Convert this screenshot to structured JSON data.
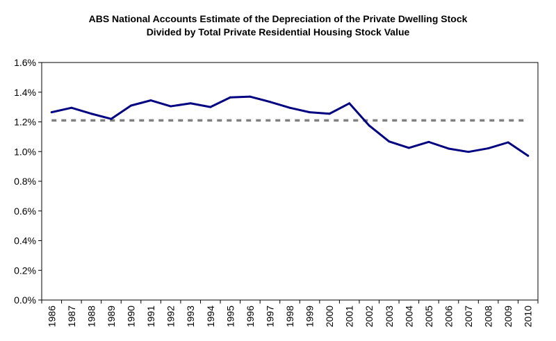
{
  "chart_data": {
    "type": "line",
    "title": "ABS National Accounts Estimate of the Depreciation of the Private Dwelling Stock",
    "subtitle": "Divided by Total Private Residential Housing Stock Value",
    "xlabel": "",
    "ylabel": "",
    "categories": [
      "1986",
      "1987",
      "1988",
      "1989",
      "1990",
      "1991",
      "1992",
      "1993",
      "1994",
      "1995",
      "1996",
      "1997",
      "1998",
      "1999",
      "2000",
      "2001",
      "2002",
      "2003",
      "2004",
      "2005",
      "2006",
      "2007",
      "2008",
      "2009",
      "2010"
    ],
    "series": [
      {
        "values": [
          1.265,
          1.295,
          1.255,
          1.22,
          1.31,
          1.345,
          1.305,
          1.325,
          1.3,
          1.365,
          1.37,
          1.335,
          1.295,
          1.265,
          1.255,
          1.325,
          1.175,
          1.068,
          1.025,
          1.065,
          1.02,
          0.998,
          1.022,
          1.062,
          0.972
        ],
        "color": "#000080",
        "style": "solid"
      }
    ],
    "reference_line": {
      "value": 1.21,
      "color": "#808080",
      "style": "dashed"
    },
    "ylim": [
      0,
      1.6
    ],
    "yticks": [
      "0.0%",
      "0.2%",
      "0.4%",
      "0.6%",
      "0.8%",
      "1.0%",
      "1.2%",
      "1.4%",
      "1.6%"
    ],
    "grid": false,
    "legend": "none"
  }
}
